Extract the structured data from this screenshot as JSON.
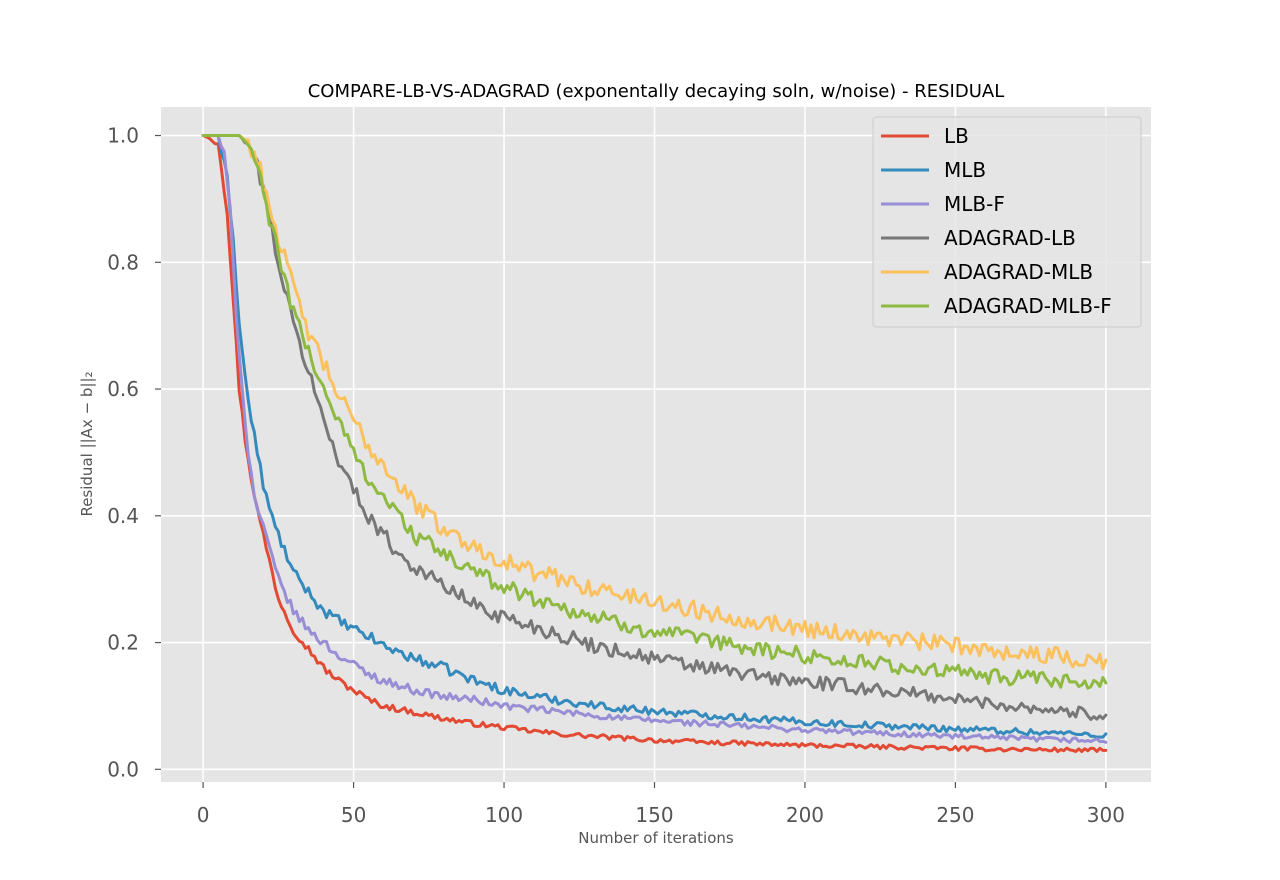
{
  "chart_data": {
    "type": "line",
    "title": "COMPARE-LB-VS-ADAGRAD (exponentally decaying soln, w/noise) - RESIDUAL",
    "xlabel": "Number of iterations",
    "ylabel": "Residual ||Ax − b||₂",
    "xlim": [
      -14,
      315
    ],
    "ylim": [
      -0.02,
      1.045
    ],
    "xticks": [
      0,
      50,
      100,
      150,
      200,
      250,
      300
    ],
    "yticks": [
      0.0,
      0.2,
      0.4,
      0.6,
      0.8,
      1.0
    ],
    "xtick_labels": [
      "0",
      "50",
      "100",
      "150",
      "200",
      "250",
      "300"
    ],
    "ytick_labels": [
      "0.0",
      "0.2",
      "0.4",
      "0.6",
      "0.8",
      "1.0"
    ],
    "grid": true,
    "legend_position": "top-right",
    "series": [
      {
        "name": "LB",
        "color": "#E24A33",
        "x": [
          0,
          5,
          8,
          10,
          12,
          14,
          16,
          18,
          20,
          22,
          25,
          30,
          35,
          40,
          45,
          50,
          55,
          60,
          70,
          80,
          90,
          100,
          110,
          120,
          130,
          140,
          150,
          160,
          170,
          180,
          190,
          200,
          220,
          240,
          260,
          280,
          300
        ],
        "y": [
          1.0,
          0.99,
          0.88,
          0.74,
          0.6,
          0.52,
          0.46,
          0.41,
          0.37,
          0.33,
          0.27,
          0.22,
          0.19,
          0.16,
          0.14,
          0.125,
          0.11,
          0.1,
          0.09,
          0.08,
          0.072,
          0.066,
          0.06,
          0.055,
          0.052,
          0.049,
          0.046,
          0.044,
          0.042,
          0.041,
          0.039,
          0.038,
          0.036,
          0.034,
          0.032,
          0.031,
          0.03
        ],
        "noise": 0.006
      },
      {
        "name": "MLB",
        "color": "#348ABD",
        "x": [
          0,
          5,
          8,
          10,
          12,
          15,
          18,
          20,
          22,
          25,
          30,
          35,
          40,
          45,
          50,
          55,
          60,
          70,
          80,
          90,
          100,
          110,
          120,
          130,
          140,
          150,
          160,
          170,
          180,
          190,
          200,
          220,
          240,
          260,
          280,
          300
        ],
        "y": [
          1.0,
          1.0,
          0.93,
          0.84,
          0.7,
          0.58,
          0.5,
          0.45,
          0.41,
          0.37,
          0.31,
          0.28,
          0.25,
          0.235,
          0.22,
          0.21,
          0.195,
          0.175,
          0.16,
          0.14,
          0.125,
          0.115,
          0.108,
          0.101,
          0.096,
          0.092,
          0.088,
          0.085,
          0.082,
          0.078,
          0.075,
          0.07,
          0.066,
          0.062,
          0.058,
          0.054
        ],
        "noise": 0.008
      },
      {
        "name": "MLB-F",
        "color": "#988ED5",
        "x": [
          0,
          5,
          7,
          9,
          11,
          13,
          15,
          17,
          20,
          22,
          25,
          30,
          35,
          40,
          45,
          50,
          55,
          60,
          70,
          80,
          90,
          100,
          110,
          120,
          130,
          140,
          150,
          160,
          170,
          180,
          190,
          200,
          220,
          240,
          260,
          280,
          300
        ],
        "y": [
          1.0,
          1.0,
          0.97,
          0.88,
          0.72,
          0.6,
          0.5,
          0.43,
          0.38,
          0.35,
          0.3,
          0.25,
          0.22,
          0.2,
          0.18,
          0.165,
          0.15,
          0.14,
          0.125,
          0.115,
          0.11,
          0.1,
          0.095,
          0.09,
          0.085,
          0.08,
          0.077,
          0.074,
          0.071,
          0.068,
          0.065,
          0.062,
          0.058,
          0.054,
          0.05,
          0.047,
          0.045
        ],
        "noise": 0.007
      },
      {
        "name": "ADAGRAD-LB",
        "color": "#777777",
        "x": [
          0,
          12,
          15,
          18,
          20,
          22,
          25,
          28,
          30,
          35,
          40,
          45,
          50,
          55,
          60,
          65,
          70,
          80,
          90,
          100,
          110,
          120,
          130,
          140,
          150,
          160,
          170,
          180,
          190,
          200,
          220,
          240,
          260,
          280,
          300
        ],
        "y": [
          1.0,
          1.0,
          0.985,
          0.95,
          0.92,
          0.87,
          0.8,
          0.74,
          0.7,
          0.63,
          0.55,
          0.49,
          0.44,
          0.4,
          0.37,
          0.34,
          0.32,
          0.29,
          0.26,
          0.24,
          0.225,
          0.21,
          0.195,
          0.185,
          0.175,
          0.165,
          0.158,
          0.15,
          0.143,
          0.138,
          0.128,
          0.117,
          0.105,
          0.095,
          0.085
        ],
        "noise": 0.012
      },
      {
        "name": "ADAGRAD-MLB",
        "color": "#FBC15E",
        "x": [
          0,
          12,
          15,
          18,
          20,
          22,
          25,
          28,
          30,
          35,
          40,
          45,
          50,
          55,
          60,
          65,
          70,
          80,
          90,
          100,
          110,
          120,
          130,
          140,
          150,
          160,
          170,
          180,
          190,
          200,
          220,
          240,
          260,
          280,
          300
        ],
        "y": [
          1.0,
          1.0,
          0.99,
          0.96,
          0.93,
          0.89,
          0.84,
          0.79,
          0.76,
          0.69,
          0.64,
          0.59,
          0.55,
          0.51,
          0.48,
          0.45,
          0.42,
          0.38,
          0.35,
          0.33,
          0.31,
          0.3,
          0.285,
          0.275,
          0.265,
          0.255,
          0.245,
          0.237,
          0.23,
          0.223,
          0.21,
          0.2,
          0.19,
          0.18,
          0.17
        ],
        "noise": 0.014
      },
      {
        "name": "ADAGRAD-MLB-F",
        "color": "#8EBA42",
        "x": [
          0,
          12,
          15,
          18,
          20,
          22,
          25,
          28,
          30,
          35,
          40,
          45,
          50,
          55,
          60,
          65,
          70,
          80,
          90,
          100,
          110,
          120,
          130,
          140,
          150,
          160,
          170,
          180,
          190,
          200,
          220,
          240,
          260,
          280,
          300
        ],
        "y": [
          1.0,
          1.0,
          0.985,
          0.95,
          0.91,
          0.87,
          0.81,
          0.76,
          0.72,
          0.66,
          0.6,
          0.55,
          0.5,
          0.46,
          0.43,
          0.4,
          0.37,
          0.34,
          0.31,
          0.29,
          0.27,
          0.255,
          0.24,
          0.228,
          0.218,
          0.208,
          0.2,
          0.193,
          0.186,
          0.18,
          0.168,
          0.157,
          0.148,
          0.14,
          0.133
        ],
        "noise": 0.013
      }
    ]
  }
}
